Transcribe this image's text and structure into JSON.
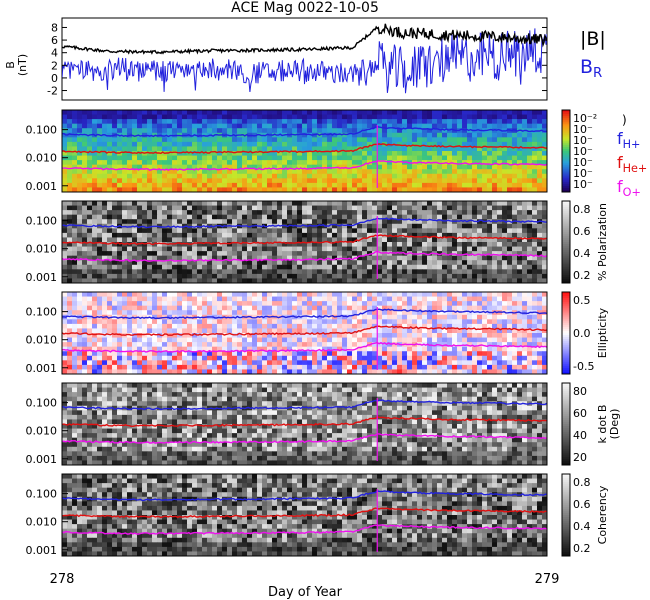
{
  "title": "ACE Mag 0022-10-05",
  "x_axis": {
    "label": "Day of Year",
    "start": "278",
    "end": "279"
  },
  "colors": {
    "blue": "#2222dd",
    "red": "#e01010",
    "magenta": "#ee11ee",
    "black": "#000000"
  },
  "mag_panel": {
    "ylabel": "B",
    "yunit": "(nT)",
    "yticks": [
      "8",
      "6",
      "4",
      "2",
      "0",
      "-2"
    ],
    "legend": [
      {
        "text": "|B|",
        "color": "#000000"
      },
      {
        "text": "B",
        "sub": "R",
        "color": "#2222dd"
      }
    ]
  },
  "spectra_panels": [
    {
      "id": "power",
      "colorbar": "rainbow",
      "cb_label": ")",
      "cb_ticks": [
        "10⁻²",
        "10⁻",
        "10⁻",
        "10⁻",
        "10⁻",
        "10⁻",
        "10⁻"
      ]
    },
    {
      "id": "polarization",
      "colorbar": "gray",
      "cb_label": "% Polarization",
      "cb_ticks": [
        "0.8",
        "0.6",
        "0.4",
        "0.2"
      ]
    },
    {
      "id": "ellipticity",
      "colorbar": "bwr",
      "cb_label": "Ellipticity",
      "cb_ticks": [
        "0.5",
        "0.0",
        "-0.5"
      ]
    },
    {
      "id": "kdotb",
      "colorbar": "gray",
      "cb_label": "k dot B",
      "cb_label2": "(Deg)",
      "cb_ticks": [
        "80",
        "60",
        "40",
        "20"
      ]
    },
    {
      "id": "coherency",
      "colorbar": "gray",
      "cb_label": "Coherency",
      "cb_ticks": [
        "0.8",
        "0.6",
        "0.4",
        "0.2"
      ]
    }
  ],
  "freq_ticks": [
    "0.100",
    "0.010",
    "0.001"
  ],
  "gyro_legend": [
    {
      "text": "f",
      "sub": "H+",
      "color": "#2222dd"
    },
    {
      "text": "f",
      "sub": "He+",
      "color": "#e01010"
    },
    {
      "text": "f",
      "sub": "O+",
      "color": "#ee11ee"
    }
  ],
  "chart_data": {
    "type": "line",
    "title": "ACE Mag 0022-10-05",
    "xlabel": "Day of Year",
    "xlim": [
      278,
      279
    ],
    "panels": [
      {
        "ylim": [
          -3.5,
          9.5
        ],
        "series": [
          {
            "name": "|B|",
            "x": [
              278.0,
              278.1,
              278.2,
              278.3,
              278.4,
              278.5,
              278.6,
              278.65,
              278.7,
              278.8,
              278.9,
              279.0
            ],
            "y": [
              5.0,
              4.2,
              4.1,
              4.3,
              4.4,
              4.5,
              4.8,
              8.0,
              7.2,
              6.8,
              6.5,
              6.0
            ]
          },
          {
            "name": "B_R",
            "x": [
              278.0,
              278.1,
              278.2,
              278.3,
              278.4,
              278.5,
              278.6,
              278.65,
              278.7,
              278.8,
              278.9,
              279.0
            ],
            "y": [
              1.0,
              1.5,
              1.0,
              1.5,
              0.8,
              1.2,
              0.5,
              2.0,
              1.0,
              3.0,
              3.5,
              4.5
            ]
          }
        ]
      },
      {
        "yscale": "log",
        "ylim": [
          0.0006,
          0.5
        ],
        "series": [
          {
            "name": "f_H+",
            "x": [
              278.0,
              278.1,
              278.2,
              278.3,
              278.4,
              278.5,
              278.6,
              278.65,
              278.7,
              278.8,
              278.9,
              279.0
            ],
            "y": [
              0.068,
              0.062,
              0.06,
              0.062,
              0.064,
              0.066,
              0.07,
              0.12,
              0.11,
              0.1,
              0.095,
              0.09
            ]
          },
          {
            "name": "f_He+",
            "x": [
              278.0,
              278.1,
              278.2,
              278.3,
              278.4,
              278.5,
              278.6,
              278.65,
              278.7,
              278.8,
              278.9,
              279.0
            ],
            "y": [
              0.017,
              0.0155,
              0.015,
              0.0155,
              0.016,
              0.0165,
              0.0175,
              0.03,
              0.0275,
              0.025,
              0.024,
              0.0225
            ]
          },
          {
            "name": "f_O+",
            "x": [
              278.0,
              278.1,
              278.2,
              278.3,
              278.4,
              278.5,
              278.6,
              278.65,
              278.7,
              278.8,
              278.9,
              279.0
            ],
            "y": [
              0.0043,
              0.0039,
              0.0038,
              0.0039,
              0.004,
              0.0041,
              0.0044,
              0.0075,
              0.0069,
              0.0063,
              0.006,
              0.0056
            ]
          }
        ]
      }
    ]
  }
}
